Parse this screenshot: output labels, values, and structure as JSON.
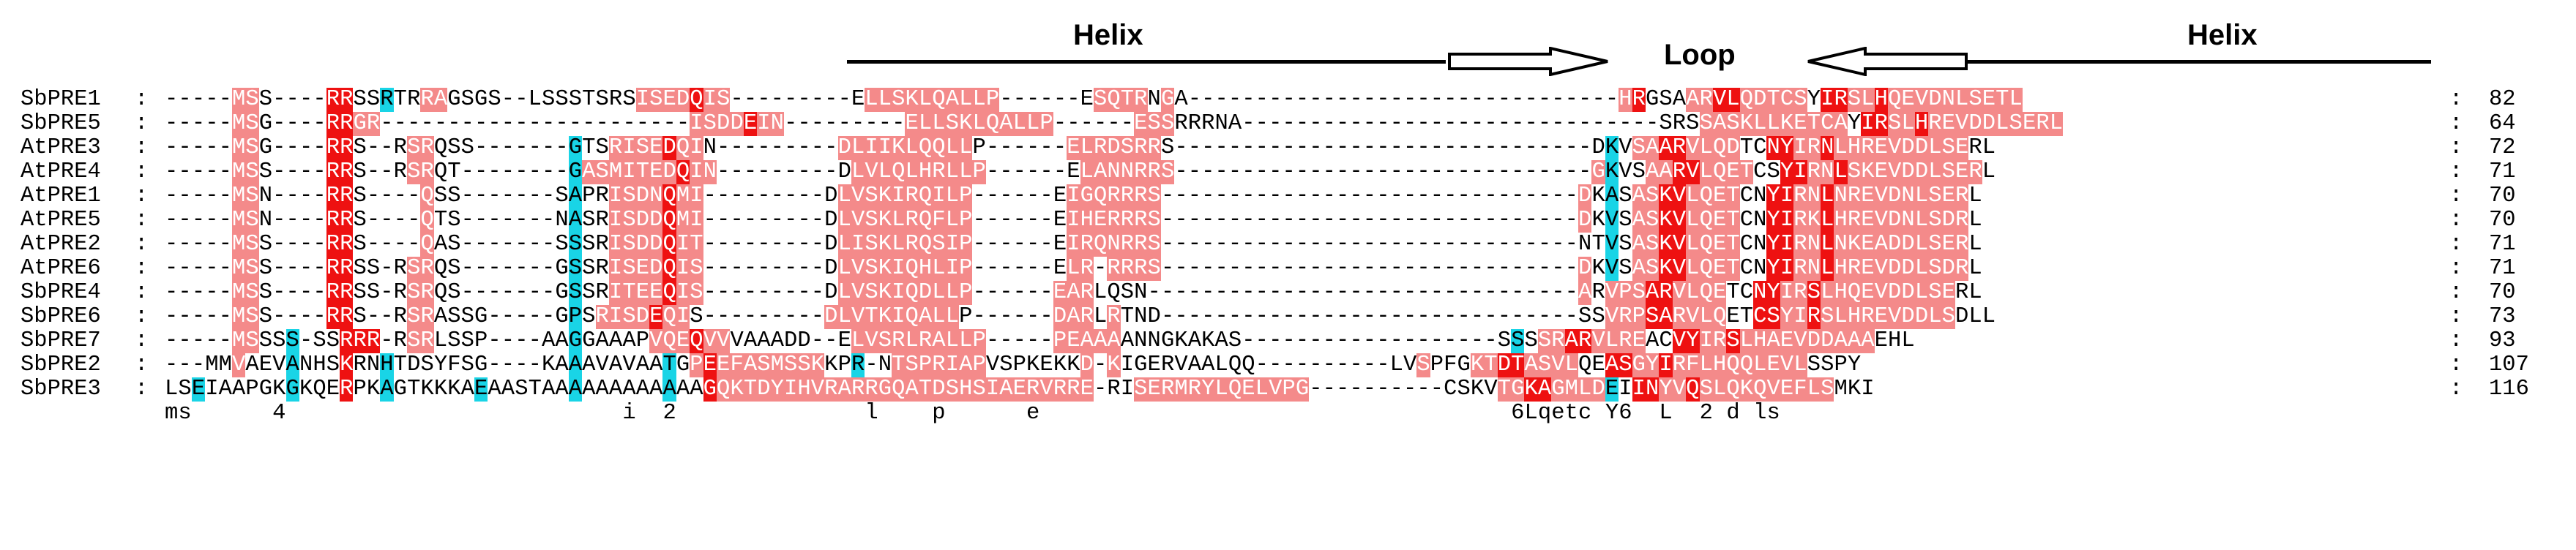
{
  "annotations": {
    "helix_left": "Helix",
    "loop": "Loop",
    "helix_right": "Helix"
  },
  "legend_colors": {
    "conserved_identical": "#ee1111",
    "conserved_similar": "#f48a8a",
    "conserved_group": "#19d4e6"
  },
  "alignment": {
    "separator": ":",
    "rows": [
      {
        "name": "SbPRE1",
        "seq": "-----MSS----RRSSRTRRAGSGS--LSSSTSRSISEDQIS---------ELLSKLQALLP------ESQTRNGA--------------------------------HRGSAARVLQDTCSYIRSLHQEVDNLSETL",
        "count": "82",
        "marks": "-----PPC----RRCCCCCPP--------------PPPPRPPP---------PPPPPPPPPPP------PPPPCP---------------------------------PRCCCPPRRPPPPPCRRPPRPPPPPPPPPP"
      },
      {
        "name": "SbPRE5",
        "seq": "-----MSG----RRGR-----------------------ISDDEIN---------ELLSKLQALLP------ESSRRRNA-------------------------------SRSSASKLLKETCAYIRSLHREVDDLSERL",
        "count": "64",
        "marks": "-----PPC----RRPP-----------------------PPPPRPP---------PPPPPPPPPPP------PPP---------------------------------------PPPPPPPPPPPCRRPPRPPPPPPPPPP"
      },
      {
        "name": "AtPRE3",
        "seq": "-----MSG----RRS--RSRQSS-------GTSRISEDQIN---------DLIIKLQQLLP------ELRDSRRS-------------------------------DKVSAARVLQDTCNYIRNLHREVDDLSERL",
        "count": "72",
        "marks": "-----PPC----RRC--CPPCC-------CCCCPPPPRPP---------CPPPPPPPPPP------CPPPPPPP-------------------------------PCCCPPRRPPPPCCRRPPRPPPPPPPPPP"
      },
      {
        "name": "AtPRE4",
        "seq": "-----MSS----RRS--RSRQT--------GASMITEDQIN---------DLVLQLHRLLP------ELANNRRS-------------------------------GKVSAARVLQETCSYIRNLSKEVDDLSERL",
        "count": "71",
        "marks": "-----PPC----RRC--CPPC---------CPPPPPPPRPP---------CPPPPPPPPPP------CPPPPPPP-------------------------------PCCCPPRRPPPPCCRRPPRPPPPPPPPPP"
      },
      {
        "name": "AtPRE1",
        "seq": "-----MSN----RRS----QSS-------SAPRISDNQMI---------DLVSKIRQILP------EIGQRRRS-------------------------------DKASASKVLQETCNYIRNLNREVDNLSERL",
        "count": "70",
        "marks": "-----PPC----RRC----PCC-------CCCCPPPPRPP---------CPPPPPPPPPP------CPPPPPPP-------------------------------PCCCPPRRPPPPCCRRPPRPPPPPPPPPP"
      },
      {
        "name": "AtPRE5",
        "seq": "-----MSN----RRS----QTS-------NASRISDDQMI---------DLVSKLRQFLP------EIHERRRS-------------------------------DKVSASKVLQETCNYIRKLHREVDNLSDRL",
        "count": "70",
        "marks": "-----PPC----RRC----PCC-------CCCCPPPPRPP---------CPPPPPPPPPP------CPPPPPPP-------------------------------PCCCPPRRPPPPCCRRPPRPPPPPPPPPP"
      },
      {
        "name": "AtPRE2",
        "seq": "-----MSS----RRS----QAS-------SSSRISDDQIT---------DLISKLRQSIP------EIRQNRRS-------------------------------NTVSASKVLQETCNYIRNLNKEADDLSERL",
        "count": "71",
        "marks": "-----PPC----RRC----PCC-------CCCCPPPPRPP---------CPPPPPPPPPP------CPPPPPPP-------------------------------CCCCPPRRPPPPCCRRPPRPPPPPPPPPP"
      },
      {
        "name": "AtPRE6",
        "seq": "-----MSS----RRSS-RSRQS-------GSSRISEDQIS---------DLVSKIQHLIP------ELR-RRRS-------------------------------DKVSASKVLQETCNYIRNLHREVDDLSDRL",
        "count": "71",
        "marks": "-----PPC----RRCC-CPPCC-------CCCCPPPPRPP---------CPPPPPPPPPP------CPP-PPPP-------------------------------PCCCPPRRPPPPCCRRPPRPPPPPPPPPP"
      },
      {
        "name": "SbPRE4",
        "seq": "-----MSS----RRSS-RSRQS-------GSSRITEEQIS---------DLVSKIQDLLP------EARLQSN--------------------------------ARVPSARVLQETCNYIRSLHQEVDDLSERL",
        "count": "70",
        "marks": "-----PPC----RRCC-CPPCC-------CCCCPPPPRPP---------CPPPPPPPPPP------PPP-----------------------------------PPCPPPRRPPPPCCRRPPRPPPPPPPPPP"
      },
      {
        "name": "SbPRE6",
        "seq": "-----MSS----RRS--RSRASSG-----GPSRISDEQIS---------DLVTKIQALLP------DARLRTND-------------------------------SSVRPSARVLQETCSYIRSLHREVDDLSDLL",
        "count": "73",
        "marks": "-----PPC----RRC--CPPCCC-----CCCCPPPPRPP---------CPPPPPPPPPP------PPPPCP---------------------------------CCCPPPRRPPPPCCRRPPRPPPPPPPPPP"
      },
      {
        "name": "SbPRE7",
        "seq": "-----MSSSS-SSRRR-RSRLSSP----AAGGAAAPVQEQVVVAAADD--ELVSRLRALLP-----PEAAAANNGKAKAS-------------------SSSSRARVLREACVYIRSLHAEVDDAAAEHL",
        "count": "93",
        "marks": "-----PPCCC-CCRRR-CPPCCC-----CCCCCCCCPPPRPP--------CPPPPPPPPPP-----PPPPP---------------------------PCCCPPRRPPPPCCRRPPRPPPPPPPPPP"
      },
      {
        "name": "SbPRE2",
        "seq": "---MMVAEVANHSKRNHTDSYFSG----KAAAVAVAATGPEEFASMSSKKPR-NTSPRIAPVSPKEKKD-KIGERVAALQQ----------LVSPFGKTDTASVLQEASGYIRFLHQQLEVLSSPY",
        "count": "107",
        "marks": "---CCPCCCCCCCRCCCCCCCC----CCCCCCCCCCCCCPRPPPPPPPP-CCCCPPPPPPP-----CCPPP----------------------PCCCPPRRPPPPCCRRPPRPPPPPPPPPP"
      },
      {
        "name": "SbPRE3",
        "seq": "LSEIAAPGKGKQERPKAGTKKKAEAASTAAAAAAAAAAAAGQKTDYIHVRARRGQATDSHSIAERVRRE-RISERMRYLQELVPG----------CSKVTGKAGMLDEIINYVQSLQKQVEFLSMKI",
        "count": "116",
        "marks": "CCCCCCCCCCCCCRCCCCCCCCCCCCCCCCCCCCCCCCCCRPPPPPPPPPPPPPPPPPPPPPPPPPPPPP-CPPPPPPPPPPPPPP---------CCCCPPRRPPPPCCRRPPRPPPPPPPPPP"
      }
    ],
    "consensus": "ms      4                         i  2              l    p      e                                   6Lqetc Y6  L  2 d ls"
  }
}
